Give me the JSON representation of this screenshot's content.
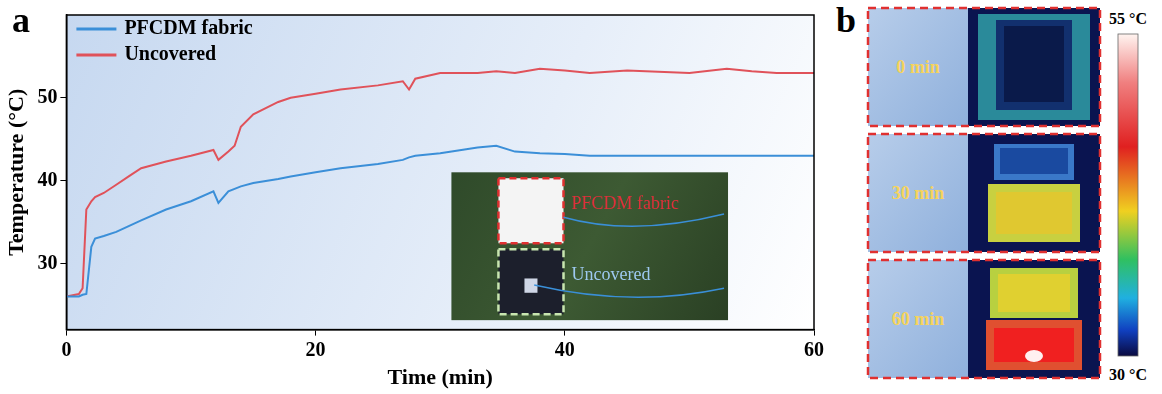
{
  "chart_data": {
    "type": "line",
    "panel_label": "a",
    "x_label": "Time (min)",
    "y_label": "Temperature (°C)",
    "xlim": [
      0,
      60
    ],
    "xticks": [
      0,
      20,
      40,
      60
    ],
    "ylim": [
      22,
      60
    ],
    "yticks": [
      30,
      40,
      50
    ],
    "grid": false,
    "legend": "upper left",
    "x": [
      0,
      1,
      1.3,
      1.6,
      2,
      2.3,
      3,
      4,
      5,
      6,
      8,
      10,
      11.8,
      12.2,
      13,
      13.5,
      14,
      15,
      17,
      18,
      20,
      22,
      25,
      27,
      27.5,
      28,
      30,
      33,
      34.5,
      36,
      38,
      40,
      42,
      45,
      50,
      53,
      55,
      57,
      60
    ],
    "series": [
      {
        "name": "PFCDM fabric",
        "color": "#3b8fd8",
        "values": [
          26,
          26,
          26.2,
          26.3,
          32,
          33,
          33.3,
          33.8,
          34.5,
          35.2,
          36.5,
          37.5,
          38.7,
          37.3,
          38.7,
          39,
          39.3,
          39.7,
          40.2,
          40.5,
          41,
          41.5,
          42,
          42.5,
          42.8,
          43,
          43.3,
          44,
          44.2,
          43.5,
          43.3,
          43.2,
          43,
          43,
          43,
          43,
          43,
          43,
          43
        ]
      },
      {
        "name": "Uncovered",
        "color": "#e0525a",
        "values": [
          26,
          26.3,
          27,
          36.5,
          37.5,
          38,
          38.5,
          39.5,
          40.5,
          41.5,
          42.3,
          43,
          43.7,
          42.5,
          43.5,
          44.2,
          46.5,
          48,
          49.5,
          50,
          50.5,
          51,
          51.5,
          52,
          51,
          52.3,
          53,
          53,
          53.2,
          53,
          53.5,
          53.3,
          53,
          53.3,
          53,
          53.5,
          53.2,
          53,
          53
        ]
      }
    ],
    "inset": {
      "labels": [
        "PFCDM fabric",
        "Uncovered"
      ]
    }
  },
  "thermal_images": {
    "panel_label": "b",
    "labels": [
      "0 min",
      "30 min",
      "60 min"
    ],
    "colorbar": {
      "range": [
        30,
        55
      ],
      "ticks": [
        {
          "value": 55,
          "label": "55 °C"
        },
        {
          "value": 30,
          "label": "30 °C"
        }
      ]
    }
  }
}
